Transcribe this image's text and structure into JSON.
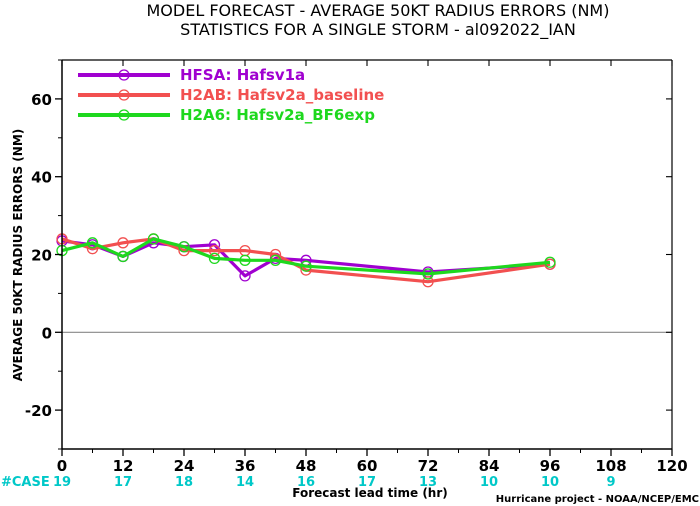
{
  "chart_data": {
    "type": "line",
    "title": "MODEL FORECAST - AVERAGE 50KT RADIUS ERRORS (NM)",
    "subtitle": "STATISTICS FOR A SINGLE STORM - al092022_IAN",
    "xlabel": "Forecast lead time (hr)",
    "ylabel": "AVERAGE 50KT RADIUS ERRORS (NM)",
    "xlim": [
      0,
      120
    ],
    "ylim": [
      -30,
      70
    ],
    "x_ticks": [
      0,
      12,
      24,
      36,
      48,
      60,
      72,
      84,
      96,
      108,
      120
    ],
    "y_ticks": [
      -20,
      0,
      20,
      40,
      60
    ],
    "zero_line": true,
    "legend_position": "top-left",
    "series": [
      {
        "name": "HFSA: Hafsv1a",
        "color": "#a000d0",
        "x": [
          0,
          6,
          12,
          18,
          24,
          30,
          36,
          42,
          48,
          72,
          96
        ],
        "y": [
          23.5,
          22.5,
          19.5,
          23,
          22,
          22.5,
          14.5,
          19,
          18.5,
          15.5,
          17.5
        ]
      },
      {
        "name": "H2AB: Hafsv2a_baseline",
        "color": "#f25050",
        "x": [
          0,
          6,
          12,
          18,
          24,
          30,
          36,
          42,
          48,
          72,
          96
        ],
        "y": [
          24,
          21.5,
          23,
          24,
          21,
          21,
          21,
          20,
          16,
          13,
          17.5
        ]
      },
      {
        "name": "H2A6: Hafsv2a_BF6exp",
        "color": "#1ed81e",
        "x": [
          0,
          6,
          12,
          18,
          24,
          30,
          36,
          42,
          48,
          72,
          96
        ],
        "y": [
          21,
          23,
          19.5,
          24,
          22,
          19,
          18.5,
          18.5,
          17,
          15,
          18
        ]
      }
    ],
    "cases": {
      "label": "#CASE",
      "x": [
        0,
        12,
        24,
        36,
        48,
        60,
        72,
        84,
        96,
        108
      ],
      "values": [
        "19",
        "17",
        "18",
        "14",
        "16",
        "17",
        "13",
        "10",
        "10",
        "9"
      ]
    }
  },
  "credit": "Hurricane project - NOAA/NCEP/EMC",
  "colors": {
    "case_color": "#00c8c8",
    "zero_line": "#888888",
    "axis": "#000000"
  }
}
